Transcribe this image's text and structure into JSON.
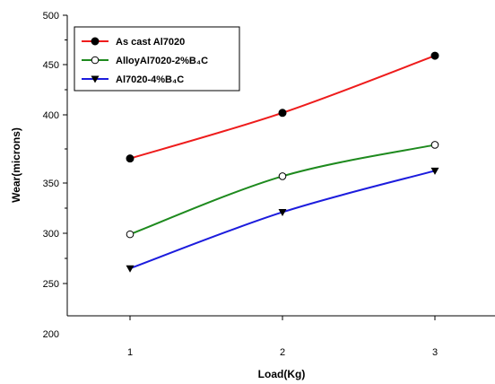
{
  "chart_data": {
    "type": "line",
    "title": "",
    "xlabel": "Load(Kg)",
    "ylabel": "Wear(microns)",
    "x": [
      1,
      2,
      3
    ],
    "xticks": [
      "1",
      "2",
      "3"
    ],
    "yticks": [
      "200",
      "250",
      "300",
      "350",
      "400",
      "450",
      "500"
    ],
    "xlim": [
      0.6,
      3.4
    ],
    "ylim": [
      200,
      500
    ],
    "grid": false,
    "legend_position": "top-left",
    "series": [
      {
        "name": "As cast Al7020",
        "values": [
          368,
          402,
          459
        ],
        "color": "#ee1c1c",
        "marker": "filled-circle"
      },
      {
        "name": "AlloyAl7020-2%B₄C",
        "values": [
          299,
          355,
          378
        ],
        "color": "#1e8a1e",
        "marker": "open-circle"
      },
      {
        "name": "Al7020-4%B₄C",
        "values": [
          265,
          321,
          359
        ],
        "color": "#1c1cdd",
        "marker": "filled-triangle-down"
      }
    ]
  }
}
